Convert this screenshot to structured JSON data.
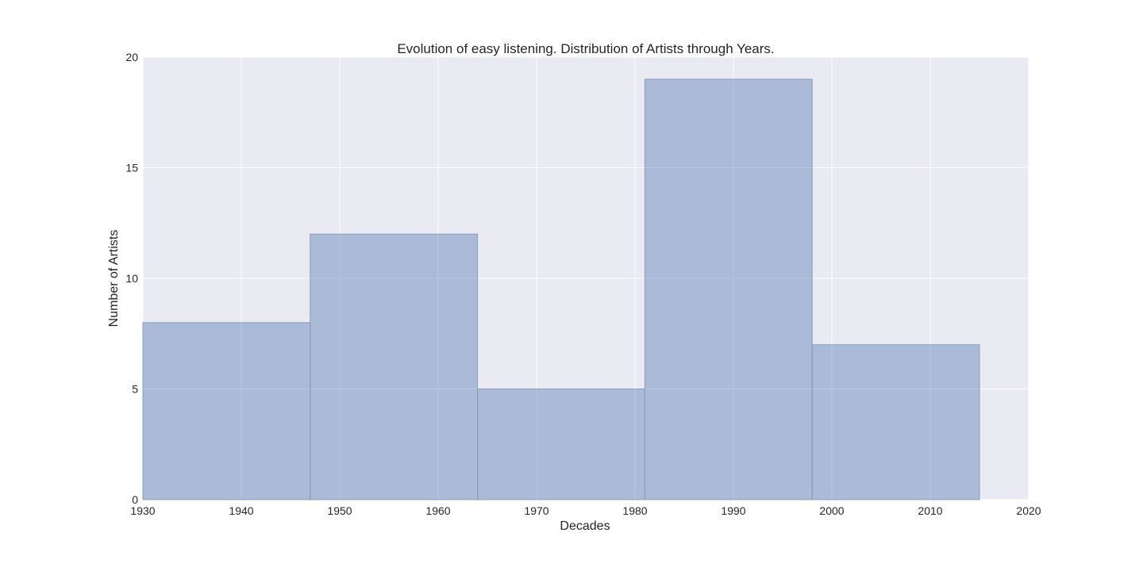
{
  "chart_data": {
    "type": "bar",
    "title": "Evolution of easy listening. Distribution of Artists through Years.",
    "xlabel": "Decades",
    "ylabel": "Number of Artists",
    "xlim": [
      1930,
      2020
    ],
    "ylim": [
      0,
      20
    ],
    "xticks": [
      1930,
      1940,
      1950,
      1960,
      1970,
      1980,
      1990,
      2000,
      2010,
      2020
    ],
    "yticks": [
      0,
      5,
      10,
      15,
      20
    ],
    "grid": true,
    "bins": [
      {
        "start": 1930,
        "end": 1947,
        "value": 8
      },
      {
        "start": 1947,
        "end": 1964,
        "value": 12
      },
      {
        "start": 1964,
        "end": 1981,
        "value": 5
      },
      {
        "start": 1981,
        "end": 1998,
        "value": 19
      },
      {
        "start": 1998,
        "end": 2015,
        "value": 7
      }
    ],
    "colors": {
      "plot_background": "#eaeaf2",
      "bar_fill": "#4c72b0",
      "bar_fill_opacity": 0.4,
      "bar_edge": "#8c9cc0",
      "grid": "#ffffff",
      "text": "#262626"
    }
  }
}
